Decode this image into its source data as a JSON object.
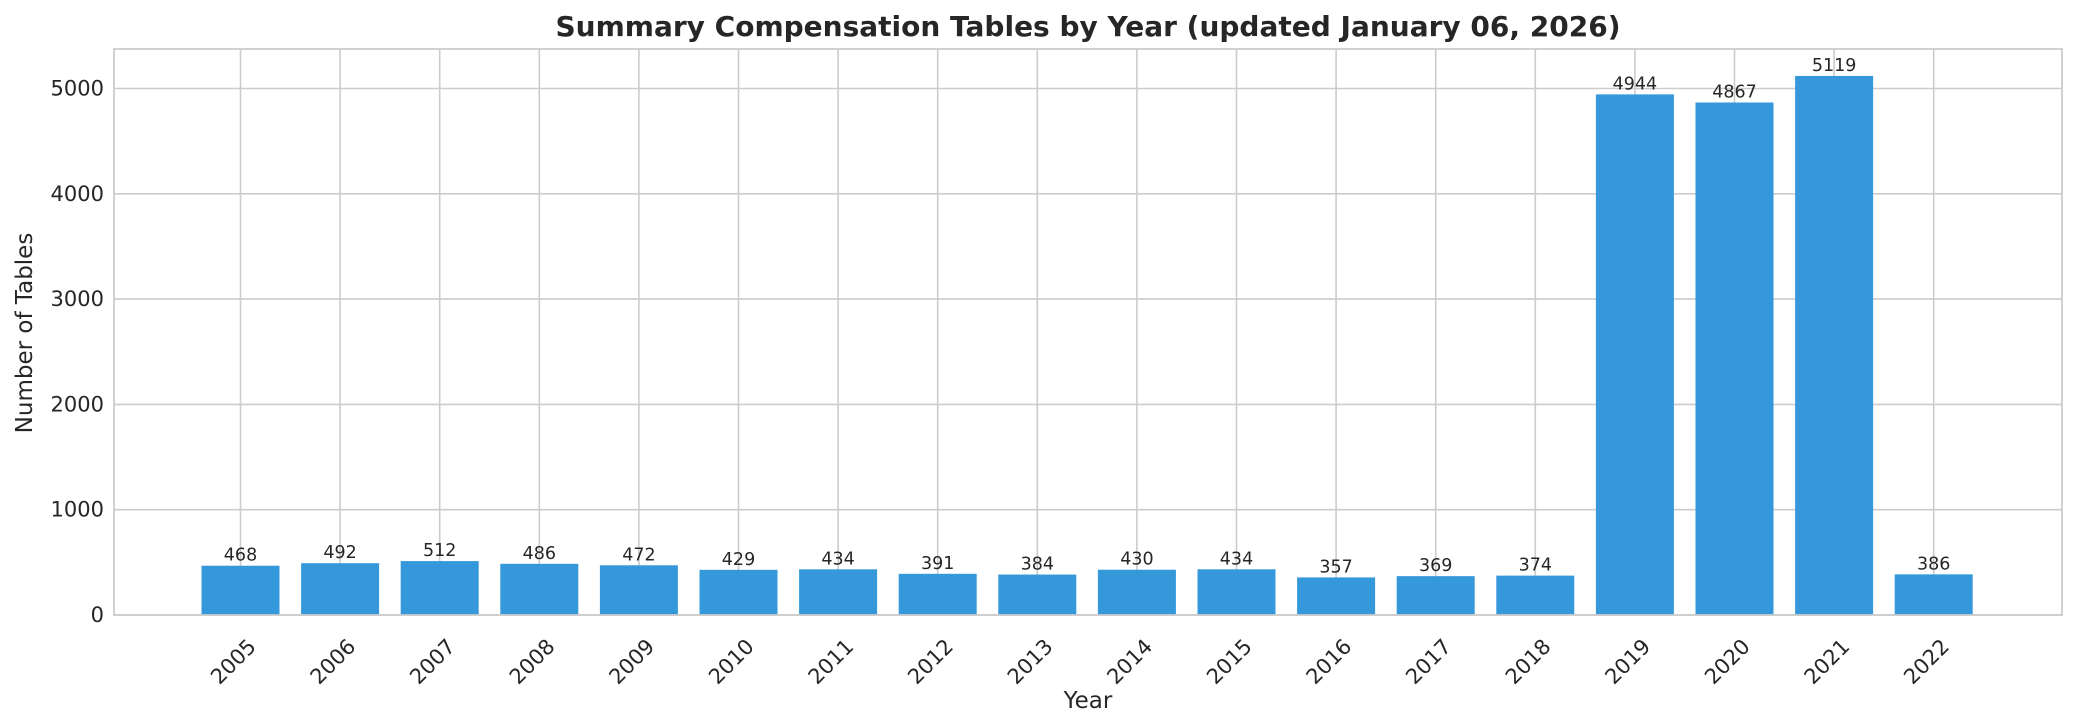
{
  "chart_data": {
    "type": "bar",
    "title": "Summary Compensation Tables by Year (updated January 06, 2026)",
    "xlabel": "Year",
    "ylabel": "Number of Tables",
    "categories": [
      "2005",
      "2006",
      "2007",
      "2008",
      "2009",
      "2010",
      "2011",
      "2012",
      "2013",
      "2014",
      "2015",
      "2016",
      "2017",
      "2018",
      "2019",
      "2020",
      "2021",
      "2022"
    ],
    "values": [
      468,
      492,
      512,
      486,
      472,
      429,
      434,
      391,
      384,
      430,
      434,
      357,
      369,
      374,
      4944,
      4867,
      5119,
      386
    ],
    "ylim": [
      0,
      5375
    ],
    "yticks": [
      0,
      1000,
      2000,
      3000,
      4000,
      5000
    ],
    "grid": true,
    "legend": "none",
    "bar_color": "#3598db"
  }
}
